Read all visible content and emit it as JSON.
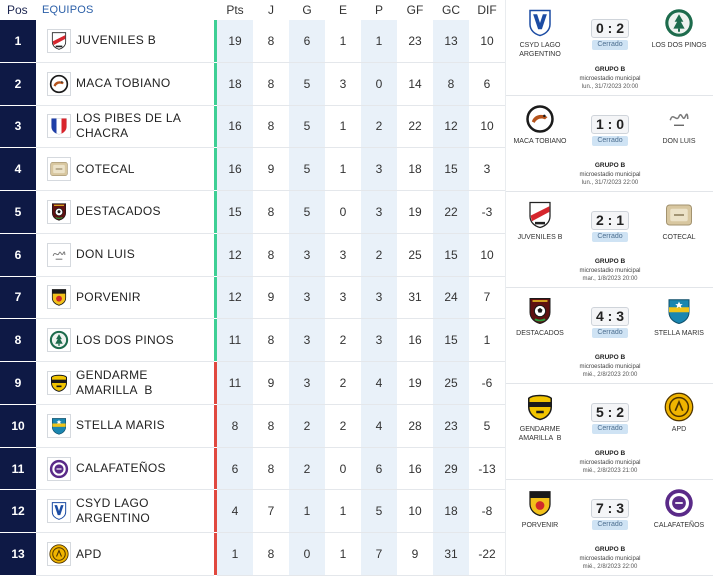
{
  "colors": {
    "pos_badge": "#0e1945",
    "header_teams": "#2b5fa8",
    "column_shade": "#e9f1f9",
    "status_badge": "#cfe3f4"
  },
  "header": {
    "pos_label": "Pos",
    "teams_label": "EQUIPOS",
    "columns": [
      "Pts",
      "J",
      "G",
      "E",
      "P",
      "GF",
      "GC",
      "DIF"
    ]
  },
  "standings": [
    {
      "pos": "1",
      "name": "JUVENILES B",
      "crest": "juveniles-b",
      "zone_color": "#3ecf95",
      "pts": 19,
      "j": 8,
      "g": 6,
      "e": 1,
      "p": 1,
      "gf": 23,
      "gc": 13,
      "dif": 10
    },
    {
      "pos": "2",
      "name": "MACA TOBIANO",
      "crest": "maca-tobiano",
      "zone_color": "#3ecf95",
      "pts": 18,
      "j": 8,
      "g": 5,
      "e": 3,
      "p": 0,
      "gf": 14,
      "gc": 8,
      "dif": 6
    },
    {
      "pos": "3",
      "name": "LOS PIBES DE LA CHACRA",
      "crest": "los-pibes-de-la-chacra",
      "zone_color": "#3ecf95",
      "pts": 16,
      "j": 8,
      "g": 5,
      "e": 1,
      "p": 2,
      "gf": 22,
      "gc": 12,
      "dif": 10
    },
    {
      "pos": "4",
      "name": "COTECAL",
      "crest": "cotecal",
      "zone_color": "#3ecf95",
      "pts": 16,
      "j": 9,
      "g": 5,
      "e": 1,
      "p": 3,
      "gf": 18,
      "gc": 15,
      "dif": 3
    },
    {
      "pos": "5",
      "name": "DESTACADOS",
      "crest": "destacados",
      "zone_color": "#3ecf95",
      "pts": 15,
      "j": 8,
      "g": 5,
      "e": 0,
      "p": 3,
      "gf": 19,
      "gc": 22,
      "dif": -3
    },
    {
      "pos": "6",
      "name": "DON LUIS",
      "crest": "don-luis",
      "zone_color": "#3ecf95",
      "pts": 12,
      "j": 8,
      "g": 3,
      "e": 3,
      "p": 2,
      "gf": 25,
      "gc": 15,
      "dif": 10
    },
    {
      "pos": "7",
      "name": "PORVENIR",
      "crest": "porvenir",
      "zone_color": "#3ecf95",
      "pts": 12,
      "j": 9,
      "g": 3,
      "e": 3,
      "p": 3,
      "gf": 31,
      "gc": 24,
      "dif": 7
    },
    {
      "pos": "8",
      "name": "LOS DOS PINOS",
      "crest": "los-dos-pinos",
      "zone_color": "#3ecf95",
      "pts": 11,
      "j": 8,
      "g": 3,
      "e": 2,
      "p": 3,
      "gf": 16,
      "gc": 15,
      "dif": 1
    },
    {
      "pos": "9",
      "name": "GENDARME AMARILLA  B",
      "crest": "gendarme-amarilla-b",
      "zone_color": "#e0483f",
      "pts": 11,
      "j": 9,
      "g": 3,
      "e": 2,
      "p": 4,
      "gf": 19,
      "gc": 25,
      "dif": -6
    },
    {
      "pos": "10",
      "name": "STELLA MARIS",
      "crest": "stella-maris",
      "zone_color": "#e0483f",
      "pts": 8,
      "j": 8,
      "g": 2,
      "e": 2,
      "p": 4,
      "gf": 28,
      "gc": 23,
      "dif": 5
    },
    {
      "pos": "11",
      "name": "CALAFATEÑOS",
      "crest": "calafatenos",
      "zone_color": "#e0483f",
      "pts": 6,
      "j": 8,
      "g": 2,
      "e": 0,
      "p": 6,
      "gf": 16,
      "gc": 29,
      "dif": -13
    },
    {
      "pos": "12",
      "name": "CSYD LAGO ARGENTINO",
      "crest": "csyd-lago-argentino",
      "zone_color": "#e0483f",
      "pts": 4,
      "j": 7,
      "g": 1,
      "e": 1,
      "p": 5,
      "gf": 10,
      "gc": 18,
      "dif": -8
    },
    {
      "pos": "13",
      "name": "APD",
      "crest": "apd",
      "zone_color": "#e0483f",
      "pts": 1,
      "j": 8,
      "g": 0,
      "e": 1,
      "p": 7,
      "gf": 9,
      "gc": 31,
      "dif": -22
    }
  ],
  "matches": [
    {
      "home": {
        "name": "CSYD LAGO ARGENTINO",
        "crest": "csyd-lago-argentino"
      },
      "away": {
        "name": "LOS DOS PINOS",
        "crest": "los-dos-pinos"
      },
      "score": "0 : 2",
      "status": "Cerrado",
      "group": "GRUPO B",
      "venue": "microestadio municipal",
      "datetime": "lun., 31/7/2023 20:00"
    },
    {
      "home": {
        "name": "MACA TOBIANO",
        "crest": "maca-tobiano"
      },
      "away": {
        "name": "DON LUIS",
        "crest": "don-luis"
      },
      "score": "1 : 0",
      "status": "Cerrado",
      "group": "GRUPO B",
      "venue": "microestadio municipal",
      "datetime": "lun., 31/7/2023 22:00"
    },
    {
      "home": {
        "name": "JUVENILES B",
        "crest": "juveniles-b"
      },
      "away": {
        "name": "COTECAL",
        "crest": "cotecal"
      },
      "score": "2 : 1",
      "status": "Cerrado",
      "group": "GRUPO B",
      "venue": "microestadio municipal",
      "datetime": "mar., 1/8/2023 20:00"
    },
    {
      "home": {
        "name": "DESTACADOS",
        "crest": "destacados"
      },
      "away": {
        "name": "STELLA MARIS",
        "crest": "stella-maris"
      },
      "score": "4 : 3",
      "status": "Cerrado",
      "group": "GRUPO B",
      "venue": "microestadio municipal",
      "datetime": "mié., 2/8/2023 20:00"
    },
    {
      "home": {
        "name": "GENDARME AMARILLA  B",
        "crest": "gendarme-amarilla-b"
      },
      "away": {
        "name": "APD",
        "crest": "apd"
      },
      "score": "5 : 2",
      "status": "Cerrado",
      "group": "GRUPO B",
      "venue": "microestadio municipal",
      "datetime": "mié., 2/8/2023 21:00"
    },
    {
      "home": {
        "name": "PORVENIR",
        "crest": "porvenir"
      },
      "away": {
        "name": "CALAFATEÑOS",
        "crest": "calafatenos"
      },
      "score": "7 : 3",
      "status": "Cerrado",
      "group": "GRUPO B",
      "venue": "microestadio municipal",
      "datetime": "mié., 2/8/2023 22:00"
    }
  ]
}
